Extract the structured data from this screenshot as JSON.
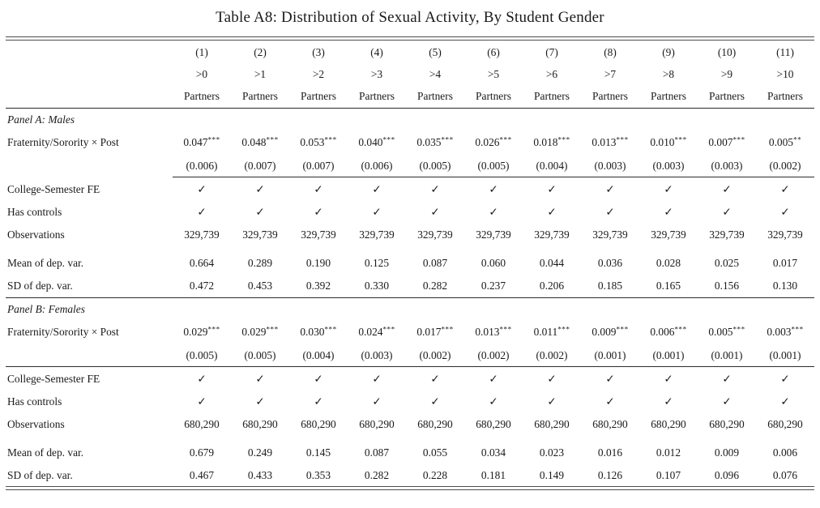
{
  "title": "Table A8: Distribution of Sexual Activity, By Student Gender",
  "header": {
    "numbers": [
      "(1)",
      "(2)",
      "(3)",
      "(4)",
      "(5)",
      "(6)",
      "(7)",
      "(8)",
      "(9)",
      "(10)",
      "(11)"
    ],
    "thresholds": [
      ">0",
      ">1",
      ">2",
      ">3",
      ">4",
      ">5",
      ">6",
      ">7",
      ">8",
      ">9",
      ">10"
    ],
    "units": [
      "Partners",
      "Partners",
      "Partners",
      "Partners",
      "Partners",
      "Partners",
      "Partners",
      "Partners",
      "Partners",
      "Partners",
      "Partners"
    ]
  },
  "row_labels": {
    "interaction": "Fraternity/Sorority × Post",
    "fe": "College-Semester FE",
    "controls": "Has controls",
    "observations": "Observations",
    "mean": "Mean of dep. var.",
    "sd": "SD of dep. var."
  },
  "panel_a": {
    "label": "Panel A: Males",
    "coefficients": [
      "0.047***",
      "0.048***",
      "0.053***",
      "0.040***",
      "0.035***",
      "0.026***",
      "0.018***",
      "0.013***",
      "0.010***",
      "0.007***",
      "0.005**"
    ],
    "std_errors": [
      "(0.006)",
      "(0.007)",
      "(0.007)",
      "(0.006)",
      "(0.005)",
      "(0.005)",
      "(0.004)",
      "(0.003)",
      "(0.003)",
      "(0.003)",
      "(0.002)"
    ],
    "fe": [
      "✓",
      "✓",
      "✓",
      "✓",
      "✓",
      "✓",
      "✓",
      "✓",
      "✓",
      "✓",
      "✓"
    ],
    "controls": [
      "✓",
      "✓",
      "✓",
      "✓",
      "✓",
      "✓",
      "✓",
      "✓",
      "✓",
      "✓",
      "✓"
    ],
    "observations": [
      "329,739",
      "329,739",
      "329,739",
      "329,739",
      "329,739",
      "329,739",
      "329,739",
      "329,739",
      "329,739",
      "329,739",
      "329,739"
    ],
    "mean": [
      "0.664",
      "0.289",
      "0.190",
      "0.125",
      "0.087",
      "0.060",
      "0.044",
      "0.036",
      "0.028",
      "0.025",
      "0.017"
    ],
    "sd": [
      "0.472",
      "0.453",
      "0.392",
      "0.330",
      "0.282",
      "0.237",
      "0.206",
      "0.185",
      "0.165",
      "0.156",
      "0.130"
    ]
  },
  "panel_b": {
    "label": "Panel B: Females",
    "coefficients": [
      "0.029***",
      "0.029***",
      "0.030***",
      "0.024***",
      "0.017***",
      "0.013***",
      "0.011***",
      "0.009***",
      "0.006***",
      "0.005***",
      "0.003***"
    ],
    "std_errors": [
      "(0.005)",
      "(0.005)",
      "(0.004)",
      "(0.003)",
      "(0.002)",
      "(0.002)",
      "(0.002)",
      "(0.001)",
      "(0.001)",
      "(0.001)",
      "(0.001)"
    ],
    "fe": [
      "✓",
      "✓",
      "✓",
      "✓",
      "✓",
      "✓",
      "✓",
      "✓",
      "✓",
      "✓",
      "✓"
    ],
    "controls": [
      "✓",
      "✓",
      "✓",
      "✓",
      "✓",
      "✓",
      "✓",
      "✓",
      "✓",
      "✓",
      "✓"
    ],
    "observations": [
      "680,290",
      "680,290",
      "680,290",
      "680,290",
      "680,290",
      "680,290",
      "680,290",
      "680,290",
      "680,290",
      "680,290",
      "680,290"
    ],
    "mean": [
      "0.679",
      "0.249",
      "0.145",
      "0.087",
      "0.055",
      "0.034",
      "0.023",
      "0.016",
      "0.012",
      "0.009",
      "0.006"
    ],
    "sd": [
      "0.467",
      "0.433",
      "0.353",
      "0.282",
      "0.228",
      "0.181",
      "0.149",
      "0.126",
      "0.107",
      "0.096",
      "0.076"
    ]
  }
}
